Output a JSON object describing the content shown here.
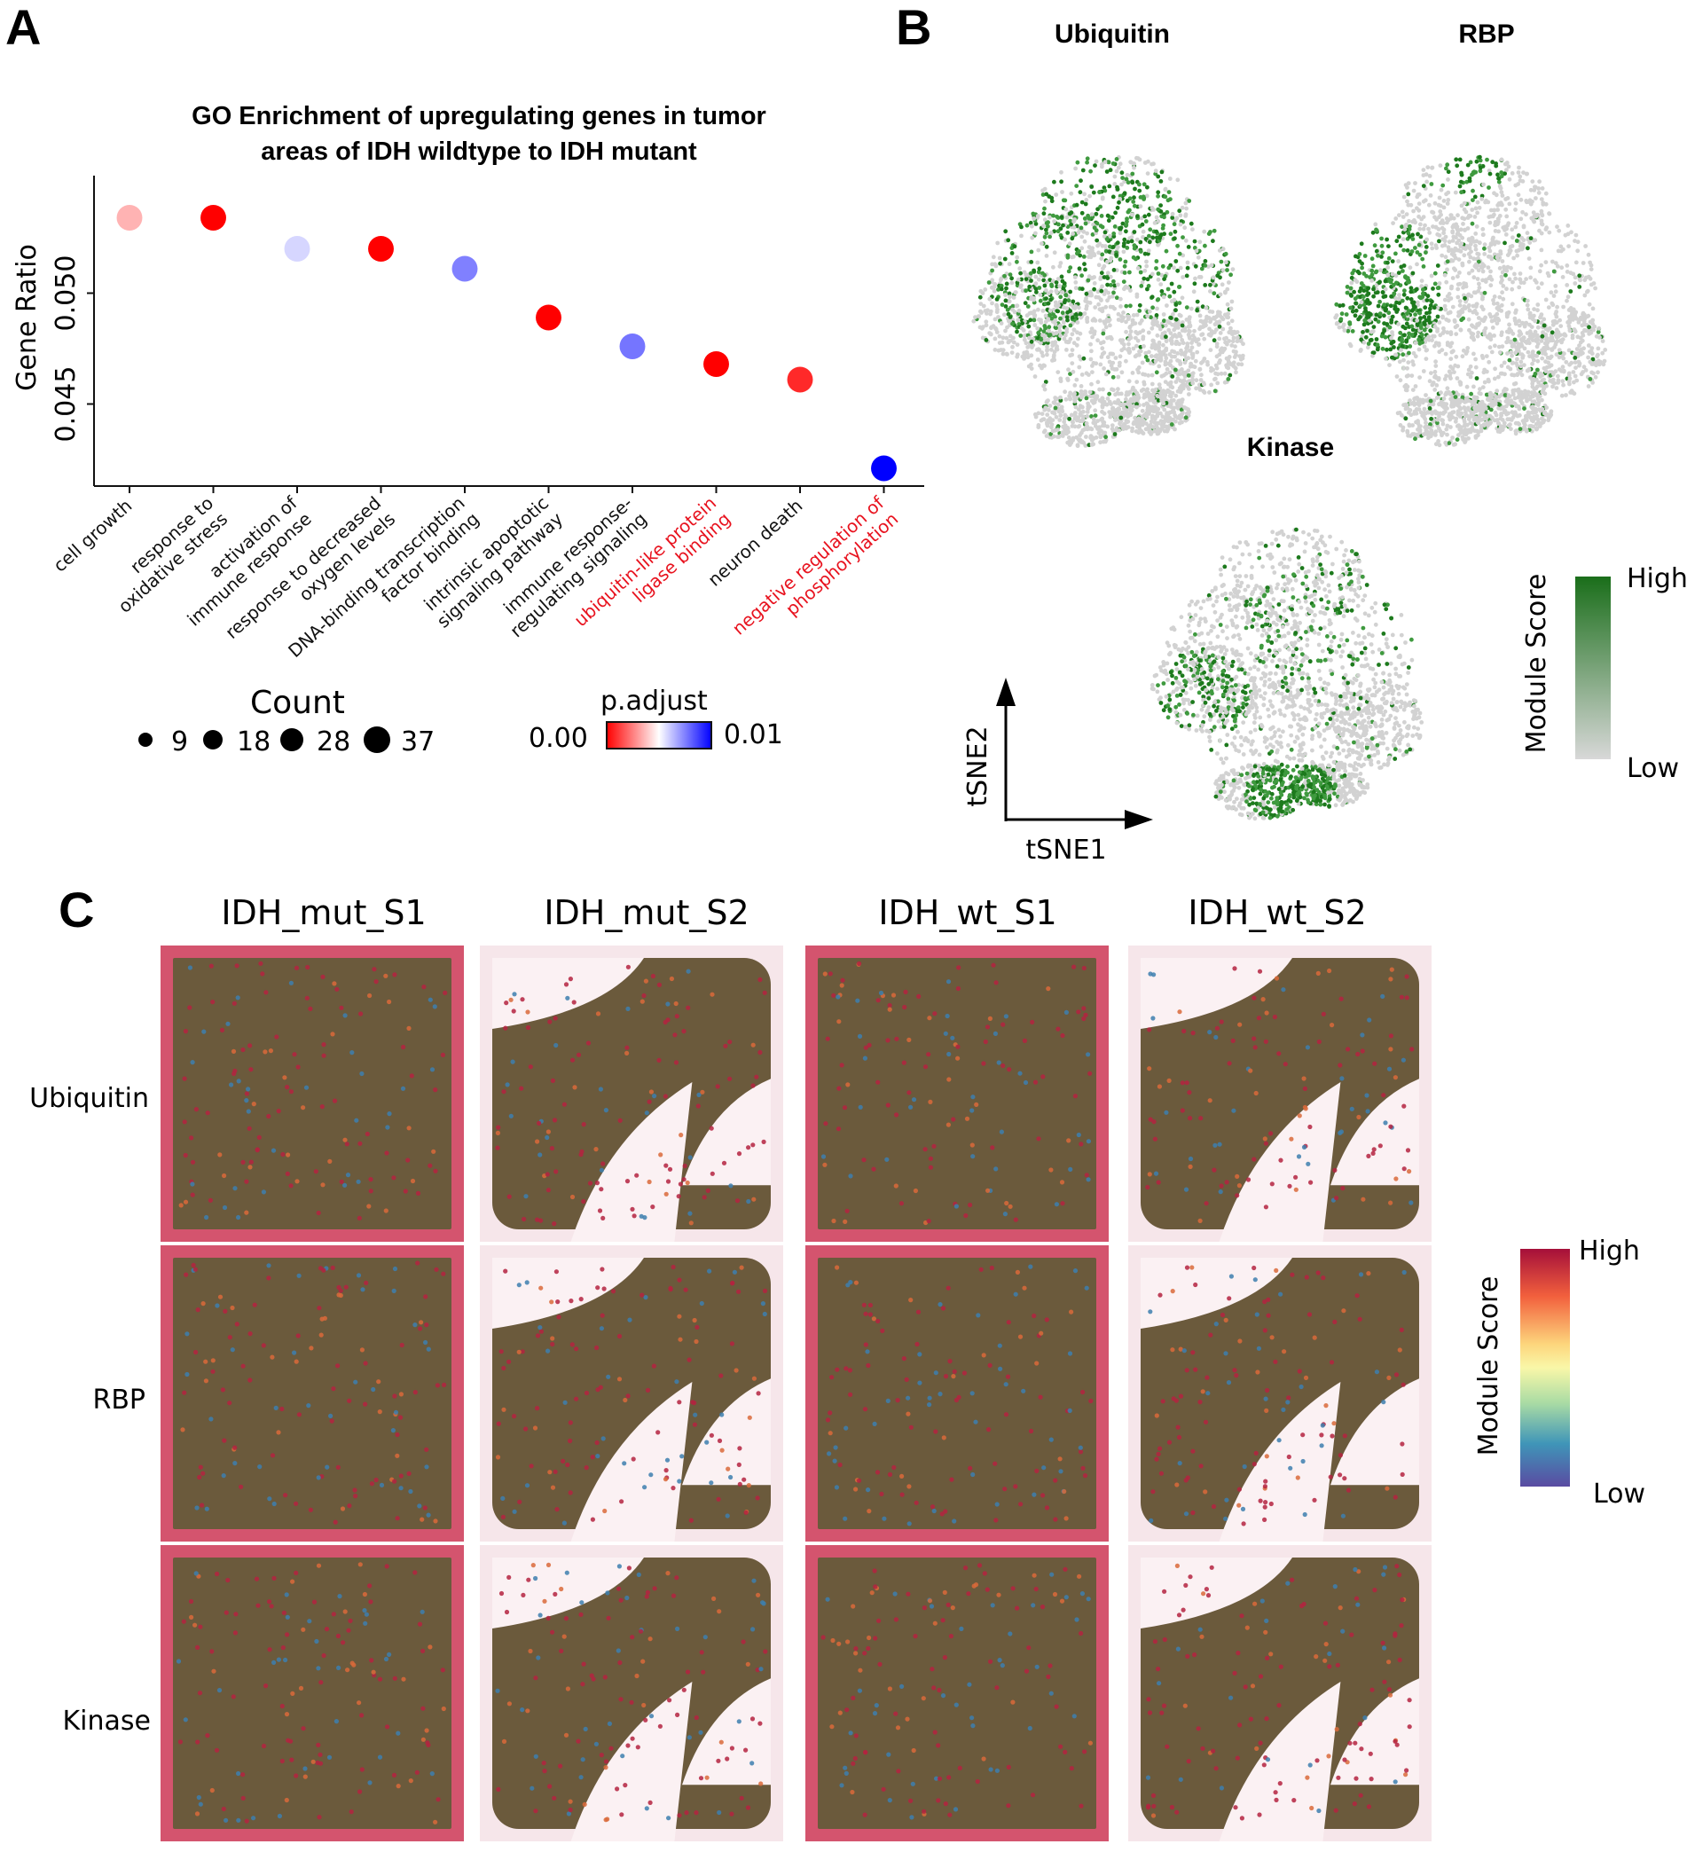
{
  "panels": {
    "a": "A",
    "b": "B",
    "c": "C"
  },
  "panel_a": {
    "title_line1": "GO Enrichment of upregulating genes in tumor",
    "title_line2": "areas of IDH wildtype to IDH mutant",
    "count_legend_title": "Count",
    "count_legend_values": [
      "9",
      "18",
      "28",
      "37"
    ],
    "padjust_legend_title": "p.adjust",
    "padjust_min_label": "0.00",
    "padjust_max_label": "0.01",
    "highlight_color": "#e8121e"
  },
  "chart_data": {
    "type": "scatter",
    "ylabel": "Gene Ratio",
    "ylim": [
      0.0413,
      0.0553
    ],
    "yticks": [
      "0.050",
      "0.045"
    ],
    "ytick_values": [
      0.05,
      0.045
    ],
    "points": [
      {
        "label_lines": [
          "cell growth"
        ],
        "y": 0.0534,
        "count": 28,
        "p_adjust": 0.0035,
        "highlight": false
      },
      {
        "label_lines": [
          "response to",
          "oxidative stress"
        ],
        "y": 0.0534,
        "count": 28,
        "p_adjust": 0.0,
        "highlight": false
      },
      {
        "label_lines": [
          "activation of",
          "immune response"
        ],
        "y": 0.052,
        "count": 28,
        "p_adjust": 0.0058,
        "highlight": false
      },
      {
        "label_lines": [
          "response to decreased",
          "oxygen levels"
        ],
        "y": 0.052,
        "count": 28,
        "p_adjust": 0.0,
        "highlight": false
      },
      {
        "label_lines": [
          "DNA-binding transcription",
          "factor binding"
        ],
        "y": 0.0511,
        "count": 28,
        "p_adjust": 0.0075,
        "highlight": false
      },
      {
        "label_lines": [
          "intrinsic apoptotic",
          "signaling pathway"
        ],
        "y": 0.0489,
        "count": 28,
        "p_adjust": 0.0,
        "highlight": false
      },
      {
        "label_lines": [
          "immune response-",
          "regulating signaling"
        ],
        "y": 0.0476,
        "count": 28,
        "p_adjust": 0.0077,
        "highlight": false
      },
      {
        "label_lines": [
          "ubiquitin-like protein",
          "ligase binding"
        ],
        "y": 0.0468,
        "count": 28,
        "p_adjust": 0.0,
        "highlight": true
      },
      {
        "label_lines": [
          "neuron death"
        ],
        "y": 0.0461,
        "count": 28,
        "p_adjust": 0.0008,
        "highlight": false
      },
      {
        "label_lines": [
          "negative regulation of",
          "phosphorylation"
        ],
        "y": 0.0421,
        "count": 28,
        "p_adjust": 0.01,
        "highlight": true
      }
    ]
  },
  "panel_b": {
    "maps": [
      "Ubiquitin",
      "RBP",
      "Kinase"
    ],
    "axis_x": "tSNE1",
    "axis_y": "tSNE2",
    "legend_title": "Module Score",
    "legend_high": "High",
    "legend_low": "Low",
    "high_color": "#1a6e1a",
    "low_color": "#d8d8d8"
  },
  "panel_c": {
    "columns": [
      "IDH_mut_S1",
      "IDH_mut_S2",
      "IDH_wt_S1",
      "IDH_wt_S2"
    ],
    "rows": [
      "Ubiquitin",
      "RBP",
      "Kinase"
    ],
    "legend_title": "Module Score",
    "legend_high": "High",
    "legend_low": "Low",
    "tissue_color": "#d4546e",
    "spot_color": "#6b5a3c"
  }
}
